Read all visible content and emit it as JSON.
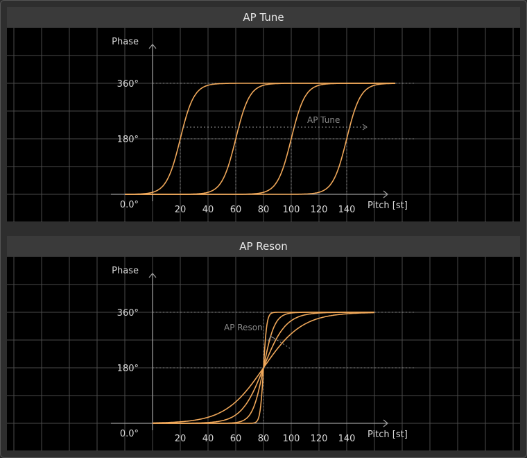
{
  "panels": [
    {
      "title": "AP Tune",
      "y_axis_label": "Phase",
      "x_axis_label": "Pitch [st]",
      "y_ticks": [
        "360°",
        "180°",
        "0.0°"
      ],
      "x_ticks": [
        "20",
        "40",
        "60",
        "80",
        "100",
        "120",
        "140"
      ],
      "annotation": "AP Tune"
    },
    {
      "title": "AP Reson",
      "y_axis_label": "Phase",
      "x_axis_label": "Pitch [st]",
      "y_ticks": [
        "360°",
        "180°",
        "0.0°"
      ],
      "x_ticks": [
        "20",
        "40",
        "60",
        "80",
        "100",
        "120",
        "140"
      ],
      "annotation": "AP Reson"
    }
  ],
  "chart_data": [
    {
      "type": "line",
      "title": "AP Tune",
      "xlabel": "Pitch [st]",
      "ylabel": "Phase",
      "xlim": [
        -20,
        175
      ],
      "ylim": [
        0,
        360
      ],
      "curves_shape": "sigmoid",
      "curve_width": 5,
      "series": [
        {
          "center": 20,
          "x": [
            -20,
            175
          ]
        },
        {
          "center": 60,
          "x": [
            -20,
            175
          ]
        },
        {
          "center": 100,
          "x": [
            -20,
            175
          ]
        },
        {
          "center": 140,
          "x": [
            -20,
            175
          ]
        }
      ],
      "grid": true,
      "colors": {
        "curve": "#f0a85a",
        "grid": "#4a4a4a",
        "axis": "#9a9a9a"
      }
    },
    {
      "type": "line",
      "title": "AP Reson",
      "xlabel": "Pitch [st]",
      "ylabel": "Phase",
      "xlim": [
        -20,
        175
      ],
      "ylim": [
        0,
        360
      ],
      "curves_shape": "sigmoid",
      "center": 80,
      "series": [
        {
          "width": 1.2
        },
        {
          "width": 4
        },
        {
          "width": 8
        },
        {
          "width": 14
        }
      ],
      "grid": true,
      "colors": {
        "curve": "#f0a85a",
        "grid": "#4a4a4a",
        "axis": "#9a9a9a"
      }
    }
  ]
}
